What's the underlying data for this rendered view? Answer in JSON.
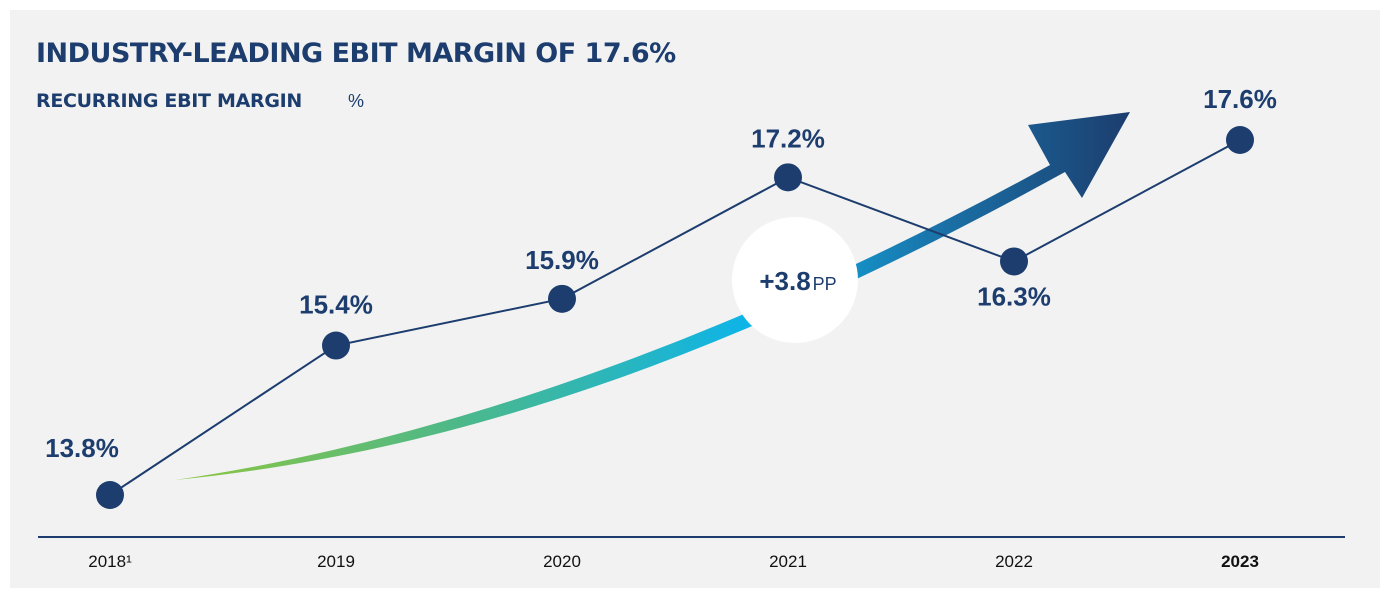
{
  "chart_data": {
    "type": "line",
    "title": "INDUSTRY-LEADING EBIT MARGIN OF 17.6%",
    "subtitle": "RECURRING EBIT MARGIN",
    "unit": "%",
    "categories": [
      "2018¹",
      "2019",
      "2020",
      "2021",
      "2022",
      "2023"
    ],
    "series": [
      {
        "name": "Recurring EBIT margin",
        "color": "#1c3d6e",
        "values": [
          13.8,
          15.4,
          15.9,
          17.2,
          16.3,
          17.6
        ],
        "value_labels": [
          "13.8%",
          "15.4%",
          "15.9%",
          "17.2%",
          "16.3%",
          "17.6%"
        ]
      }
    ],
    "annotation": {
      "text": "+3.8",
      "unit": "PP"
    }
  }
}
